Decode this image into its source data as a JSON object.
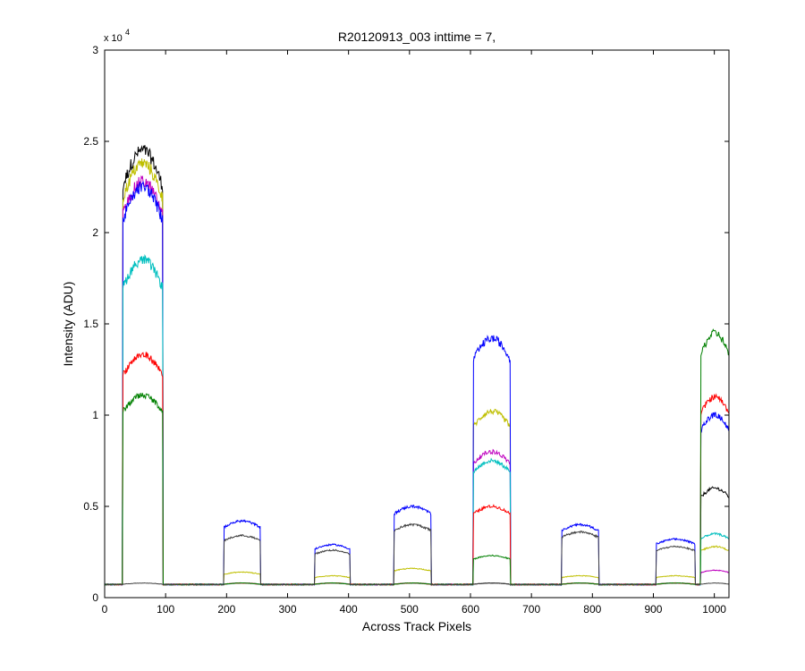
{
  "chart_data": {
    "type": "line",
    "title": "R20120913_003 inttime = 7,",
    "xlabel": "Across Track Pixels",
    "ylabel": "Intensity (ADU)",
    "y_exponent_label": "x 10",
    "y_exponent_power": "4",
    "xlim": [
      0,
      1024
    ],
    "ylim": [
      0,
      3
    ],
    "y_scale_factor": 10000,
    "xticks": [
      "0",
      "100",
      "200",
      "300",
      "400",
      "500",
      "600",
      "700",
      "800",
      "900",
      "1000"
    ],
    "yticks": [
      "0",
      "0.5",
      "1",
      "1.5",
      "2",
      "2.5",
      "3"
    ],
    "grid": false,
    "legend": "none",
    "baseline": 0.072,
    "windows": [
      {
        "x_start": 30,
        "x_end": 95
      },
      {
        "x_start": 196,
        "x_end": 255
      },
      {
        "x_start": 345,
        "x_end": 402
      },
      {
        "x_start": 475,
        "x_end": 535
      },
      {
        "x_start": 605,
        "x_end": 665
      },
      {
        "x_start": 750,
        "x_end": 810
      },
      {
        "x_start": 905,
        "x_end": 968
      },
      {
        "x_start": 978,
        "x_end": 1024
      }
    ],
    "series": [
      {
        "color": "#000000",
        "levels": [
          2.45,
          0.08,
          0.08,
          0.08,
          0.08,
          0.08,
          0.08,
          0.6
        ]
      },
      {
        "color": "#bfbf00",
        "levels": [
          2.38,
          0.14,
          0.12,
          0.16,
          1.02,
          0.12,
          0.12,
          0.28
        ]
      },
      {
        "color": "#bf00bf",
        "levels": [
          2.28,
          0.08,
          0.08,
          0.08,
          0.8,
          0.08,
          0.08,
          0.15
        ]
      },
      {
        "color": "#0000ff",
        "levels": [
          2.25,
          0.42,
          0.29,
          0.5,
          1.42,
          0.4,
          0.32,
          1.0
        ]
      },
      {
        "color": "#00bfbf",
        "levels": [
          1.85,
          0.08,
          0.08,
          0.08,
          0.75,
          0.08,
          0.08,
          0.35
        ]
      },
      {
        "color": "#ff0000",
        "levels": [
          1.33,
          0.08,
          0.08,
          0.08,
          0.5,
          0.08,
          0.08,
          1.1
        ]
      },
      {
        "color": "#008000",
        "levels": [
          1.11,
          0.08,
          0.08,
          0.08,
          0.23,
          0.08,
          0.08,
          1.45
        ]
      },
      {
        "color": "#404040",
        "levels": [
          0.08,
          0.34,
          0.26,
          0.4,
          0.08,
          0.36,
          0.28,
          0.08
        ]
      }
    ]
  }
}
